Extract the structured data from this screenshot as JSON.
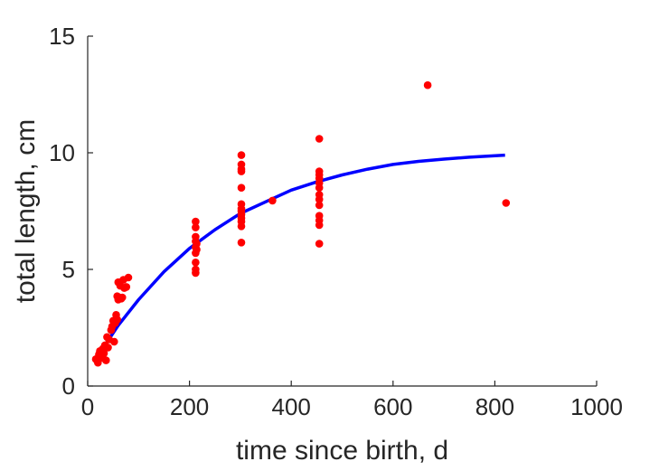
{
  "chart_data": {
    "type": "scatter",
    "xlabel": "time since birth, d",
    "ylabel": "total length, cm",
    "xlim": [
      0,
      1000
    ],
    "ylim": [
      0,
      15
    ],
    "xticks": [
      0,
      200,
      400,
      600,
      800,
      1000
    ],
    "yticks": [
      0,
      5,
      10,
      15
    ],
    "grid": false,
    "colors": {
      "points": "#ff0000",
      "fit": "#0000ff",
      "axis": "#262626"
    },
    "points": [
      {
        "x": 16,
        "y": 1.15
      },
      {
        "x": 20,
        "y": 1.0
      },
      {
        "x": 22,
        "y": 1.35
      },
      {
        "x": 24,
        "y": 1.5
      },
      {
        "x": 26,
        "y": 1.2
      },
      {
        "x": 30,
        "y": 1.6
      },
      {
        "x": 32,
        "y": 1.4
      },
      {
        "x": 34,
        "y": 1.75
      },
      {
        "x": 36,
        "y": 1.1
      },
      {
        "x": 38,
        "y": 2.1
      },
      {
        "x": 40,
        "y": 1.65
      },
      {
        "x": 42,
        "y": 2.0
      },
      {
        "x": 46,
        "y": 2.4
      },
      {
        "x": 48,
        "y": 2.55
      },
      {
        "x": 50,
        "y": 2.8
      },
      {
        "x": 52,
        "y": 1.9
      },
      {
        "x": 54,
        "y": 2.7
      },
      {
        "x": 56,
        "y": 3.05
      },
      {
        "x": 58,
        "y": 2.85
      },
      {
        "x": 58,
        "y": 3.85
      },
      {
        "x": 60,
        "y": 3.7
      },
      {
        "x": 60,
        "y": 4.45
      },
      {
        "x": 62,
        "y": 3.8
      },
      {
        "x": 64,
        "y": 4.3
      },
      {
        "x": 66,
        "y": 3.75
      },
      {
        "x": 68,
        "y": 3.8
      },
      {
        "x": 70,
        "y": 4.55
      },
      {
        "x": 72,
        "y": 4.2
      },
      {
        "x": 76,
        "y": 4.25
      },
      {
        "x": 80,
        "y": 4.65
      },
      {
        "x": 212,
        "y": 4.85
      },
      {
        "x": 212,
        "y": 5.0
      },
      {
        "x": 212,
        "y": 5.3
      },
      {
        "x": 212,
        "y": 5.7
      },
      {
        "x": 212,
        "y": 5.95
      },
      {
        "x": 212,
        "y": 6.2
      },
      {
        "x": 212,
        "y": 6.4
      },
      {
        "x": 212,
        "y": 6.8
      },
      {
        "x": 212,
        "y": 7.05
      },
      {
        "x": 214,
        "y": 5.85
      },
      {
        "x": 214,
        "y": 6.1
      },
      {
        "x": 302,
        "y": 6.15
      },
      {
        "x": 302,
        "y": 6.85
      },
      {
        "x": 302,
        "y": 7.05
      },
      {
        "x": 302,
        "y": 7.2
      },
      {
        "x": 302,
        "y": 7.35
      },
      {
        "x": 302,
        "y": 7.5
      },
      {
        "x": 302,
        "y": 7.6
      },
      {
        "x": 302,
        "y": 7.8
      },
      {
        "x": 302,
        "y": 8.5
      },
      {
        "x": 302,
        "y": 9.2
      },
      {
        "x": 302,
        "y": 9.3
      },
      {
        "x": 302,
        "y": 9.5
      },
      {
        "x": 302,
        "y": 9.9
      },
      {
        "x": 363,
        "y": 7.95
      },
      {
        "x": 455,
        "y": 6.1
      },
      {
        "x": 455,
        "y": 6.9
      },
      {
        "x": 455,
        "y": 7.1
      },
      {
        "x": 455,
        "y": 7.3
      },
      {
        "x": 455,
        "y": 7.75
      },
      {
        "x": 455,
        "y": 8.0
      },
      {
        "x": 455,
        "y": 8.2
      },
      {
        "x": 455,
        "y": 8.5
      },
      {
        "x": 455,
        "y": 8.7
      },
      {
        "x": 455,
        "y": 8.9
      },
      {
        "x": 455,
        "y": 9.05
      },
      {
        "x": 455,
        "y": 9.2
      },
      {
        "x": 455,
        "y": 10.6
      },
      {
        "x": 668,
        "y": 12.9
      },
      {
        "x": 822,
        "y": 7.85
      }
    ],
    "fit_line": {
      "x": [
        20,
        60,
        100,
        150,
        200,
        250,
        300,
        350,
        400,
        450,
        500,
        550,
        600,
        650,
        700,
        750,
        820
      ],
      "y": [
        1.3,
        2.6,
        3.7,
        4.9,
        5.9,
        6.7,
        7.4,
        7.9,
        8.4,
        8.75,
        9.05,
        9.3,
        9.5,
        9.63,
        9.73,
        9.81,
        9.9
      ]
    }
  }
}
